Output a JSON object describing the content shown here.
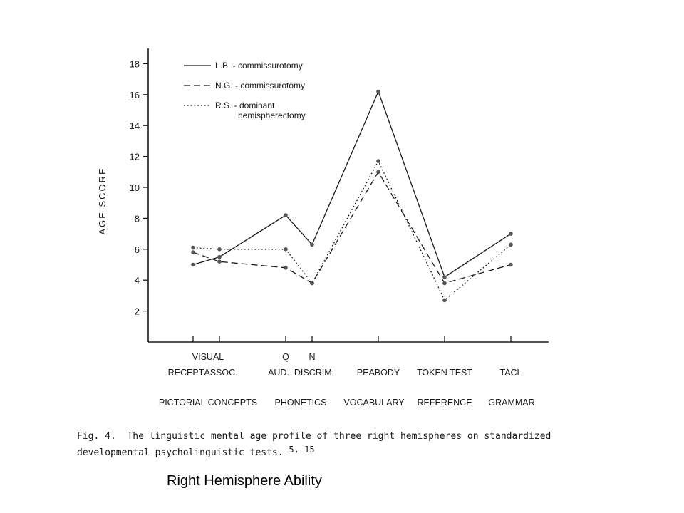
{
  "chart_data": {
    "type": "line",
    "ylabel": "AGE SCORE",
    "ylim": [
      0,
      19
    ],
    "yticks": [
      2,
      4,
      6,
      8,
      10,
      12,
      14,
      16,
      18
    ],
    "grid": false,
    "legend_position": "top-left",
    "categories": [
      {
        "top": "",
        "bottom": "RECEPT."
      },
      {
        "top": "VISUAL",
        "bottom": "ASSOC."
      },
      {
        "top": "Q",
        "bottom": "AUD."
      },
      {
        "top": "N",
        "bottom": "DISCRIM."
      },
      {
        "top": "",
        "bottom": "PEABODY"
      },
      {
        "top": "",
        "bottom": "TOKEN TEST"
      },
      {
        "top": "",
        "bottom": "TACL"
      }
    ],
    "groups": [
      "PICTORIAL CONCEPTS",
      "PHONETICS",
      "VOCABULARY",
      "REFERENCE",
      "GRAMMAR"
    ],
    "series": [
      {
        "name": "L.B. - commissurotomy",
        "dash": "solid",
        "values": [
          5.0,
          5.5,
          8.2,
          6.3,
          16.2,
          4.2,
          7.0
        ]
      },
      {
        "name": "N.G. - commissurotomy",
        "dash": "dashed",
        "values": [
          5.8,
          5.2,
          4.8,
          3.8,
          11.0,
          3.8,
          5.0
        ]
      },
      {
        "name": "R.S. - dominant hemispherectomy",
        "dash": "dotted",
        "values": [
          6.1,
          6.0,
          6.0,
          3.8,
          11.7,
          2.7,
          6.3
        ]
      }
    ]
  },
  "caption": {
    "prefix": "Fig. 4.",
    "line1": "The linguistic mental age profile of three right hemispheres on standardized",
    "line2": "developmental psycholinguistic tests.",
    "refs": "5, 15"
  },
  "footer_title": "Right Hemisphere Ability"
}
